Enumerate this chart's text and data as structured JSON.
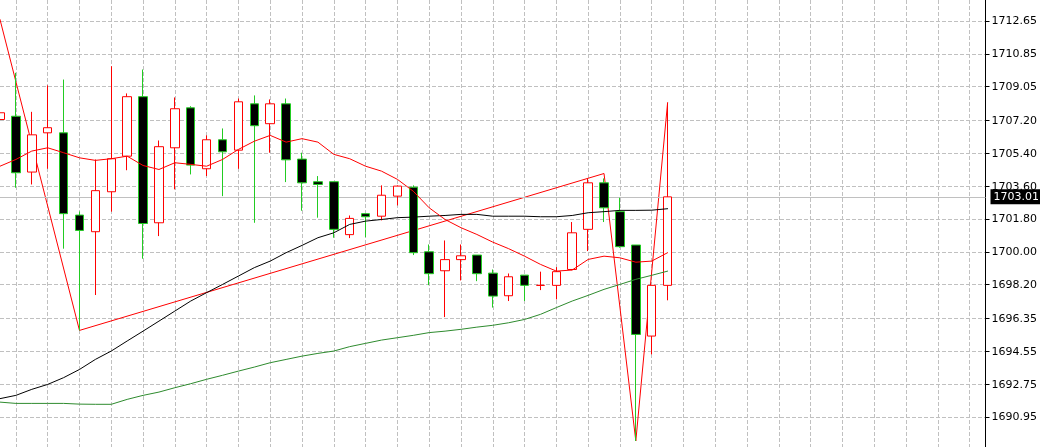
{
  "chart_data": {
    "type": "candlestick",
    "categories": [
      null,
      null,
      null,
      null,
      null,
      null,
      null,
      null,
      null,
      null,
      null,
      null,
      null,
      null,
      null,
      null,
      null,
      null,
      null,
      null,
      null,
      null,
      null,
      null,
      null,
      null,
      null,
      null,
      null,
      null,
      null,
      null,
      null,
      null,
      null,
      null,
      null,
      null,
      null,
      null,
      null,
      null,
      null,
      null,
      null,
      null,
      null,
      null,
      null,
      null,
      null,
      null,
      null,
      null,
      null,
      null,
      null,
      null,
      null,
      null,
      null,
      null,
      null
    ],
    "ylim": [
      1689.3,
      1713.8
    ],
    "yticks": [
      1712.65,
      1710.85,
      1709.05,
      {
        "value": 1707.2,
        "label": "1707.20"
      },
      {
        "value": 1705.4,
        "label": "1705.40"
      },
      {
        "value": 1703.6,
        "label": "1703.60"
      },
      {
        "value": 1701.8,
        "label": "1701.80"
      },
      {
        "value": 1700,
        "label": "1700.00"
      },
      {
        "value": 1698.2,
        "label": "1698.20"
      },
      1696.35,
      1694.55,
      1692.75,
      1690.95
    ],
    "tick_labels": "y",
    "grid": true,
    "marker": "none",
    "line_style": "solid",
    "ref_lines": [
      {
        "axis": "y",
        "value": 1703.01,
        "label": "1703.01",
        "color": "#c0c0c0"
      }
    ],
    "series": [
      {
        "type": "line",
        "color": "#2e8b2e",
        "values": [
          1691.76,
          1691.69,
          1691.69,
          1691.69,
          1691.69,
          1691.65,
          1691.64,
          1691.64,
          1691.91,
          1692.13,
          1692.31,
          1692.55,
          1692.77,
          1693.01,
          1693.23,
          1693.46,
          1693.68,
          1693.92,
          1694.1,
          1694.28,
          1694.43,
          1694.56,
          1694.8,
          1694.98,
          1695.16,
          1695.29,
          1695.42,
          1695.57,
          1695.65,
          1695.75,
          1695.87,
          1695.97,
          1696.11,
          1696.29,
          1696.57,
          1696.94,
          1697.3,
          1697.61,
          1697.94,
          1698.21,
          1698.49,
          1698.71,
          1698.94,
          null,
          null,
          null,
          null,
          null,
          null,
          null,
          null,
          null,
          null,
          null,
          null,
          null,
          null,
          null,
          null,
          null,
          null,
          null,
          null
        ]
      },
      {
        "type": "line",
        "color": "#000000",
        "values": [
          1691.95,
          1692.13,
          1692.46,
          1692.73,
          1693.1,
          1693.55,
          1694.1,
          1694.56,
          1695.11,
          1695.65,
          1696.2,
          1696.75,
          1697.3,
          1697.76,
          1698.21,
          1698.67,
          1699.13,
          1699.49,
          1699.95,
          1700.35,
          1700.77,
          1701.04,
          1701.5,
          1701.68,
          1701.77,
          1701.87,
          1701.9,
          1701.95,
          1701.99,
          1702.05,
          1702.05,
          1701.95,
          1701.95,
          1701.95,
          1701.92,
          1701.92,
          1701.99,
          1702.14,
          1702.2,
          1702.27,
          1702.27,
          1702.28,
          1702.36,
          null,
          null,
          null,
          null,
          null,
          null,
          null,
          null,
          null,
          null,
          null,
          null,
          null,
          null,
          null,
          null,
          null,
          null,
          null,
          null
        ]
      },
      {
        "type": "line",
        "color": "#ff0000",
        "values": [
          1704.69,
          1705.06,
          1705.52,
          1705.7,
          1705.43,
          1705.15,
          1705.01,
          1705.1,
          1705.24,
          1704.73,
          1704.51,
          1704.88,
          1704.79,
          1704.69,
          1705.06,
          1705.61,
          1706.06,
          1706.38,
          1706.01,
          1706.2,
          1706.01,
          1705.34,
          1705.1,
          1704.69,
          1704.42,
          1703.97,
          1703.32,
          1702.41,
          1701.77,
          1701.32,
          1700.95,
          1700.53,
          1700.17,
          1699.76,
          1699.31,
          1698.94,
          1699.0,
          1699.58,
          1699.76,
          1699.67,
          1699.43,
          1699.49,
          1699.95,
          null,
          null,
          null,
          null,
          null,
          null,
          null,
          null,
          null,
          null,
          null,
          null,
          null,
          null,
          null,
          null,
          null,
          null,
          null,
          null
        ]
      },
      {
        "type": "line",
        "color": "#ff0000",
        "values": [
          1712.73,
          null,
          null,
          null,
          null,
          1695.69,
          null,
          null,
          null,
          null,
          null,
          null,
          null,
          null,
          null,
          null,
          null,
          null,
          null,
          null,
          null,
          null,
          null,
          null,
          null,
          null,
          null,
          null,
          null,
          null,
          null,
          null,
          null,
          null,
          null,
          null,
          null,
          null,
          1704.29,
          null,
          1689.63,
          null,
          1708.17,
          null,
          null,
          null,
          null,
          null,
          null,
          null,
          null,
          null,
          null,
          null,
          null,
          null,
          null,
          null,
          null,
          null,
          null,
          null,
          null
        ]
      },
      {
        "type": "candlestick",
        "colors": [
          "#ff0000",
          "#22cc22",
          "#ff0000",
          "#ff0000",
          "#22cc22",
          "#22cc22",
          "#ff0000",
          "#ff0000",
          "#ff0000",
          "#22cc22",
          "#ff0000",
          "#ff0000",
          "#22cc22",
          "#ff0000",
          "#22cc22",
          "#ff0000",
          "#22cc22",
          "#ff0000",
          "#22cc22",
          "#22cc22",
          "#22cc22",
          "#22cc22",
          "#ff0000",
          "#22cc22",
          "#ff0000",
          "#ff0000",
          "#22cc22",
          "#22cc22",
          "#ff0000",
          "#ff0000",
          "#22cc22",
          "#22cc22",
          "#ff0000",
          "#22cc22",
          "#ff0000",
          "#ff0000",
          "#ff0000",
          "#ff0000",
          "#22cc22",
          "#22cc22",
          "#22cc22",
          "#ff0000",
          "#ff0000",
          null,
          null,
          null,
          null,
          null,
          null,
          null,
          null,
          null,
          null,
          null,
          null,
          null,
          null,
          null,
          null,
          null,
          null,
          null,
          null
        ],
        "ohlc": [
          [
            1707.25,
            1707.62,
            1707.25,
            1707.62
          ],
          [
            1707.43,
            1709.81,
            1703.51,
            1704.33
          ],
          [
            1704.37,
            1707.67,
            1703.69,
            1706.41
          ],
          [
            1706.52,
            1709.12,
            1704.55,
            1706.8
          ],
          [
            1706.52,
            1709.44,
            1700.17,
            1702.09
          ],
          [
            1702.01,
            1702.21,
            1695.69,
            1701.17
          ],
          [
            1701.1,
            1705.06,
            1697.63,
            1703.35
          ],
          [
            1703.29,
            1710.17,
            1702.2,
            1705.1
          ],
          [
            1705.24,
            1708.68,
            1704.47,
            1708.5
          ],
          [
            1708.5,
            1709.99,
            1699.62,
            1701.55
          ],
          [
            1701.59,
            1706.1,
            1700.86,
            1705.76
          ],
          [
            1705.7,
            1708.46,
            1703.42,
            1707.84
          ],
          [
            1707.89,
            1707.98,
            1704.24,
            1704.75
          ],
          [
            1704.55,
            1706.38,
            1704.15,
            1706.14
          ],
          [
            1706.14,
            1706.76,
            1703.05,
            1705.48
          ],
          [
            1705.57,
            1708.4,
            1704.55,
            1708.22
          ],
          [
            1708.11,
            1708.57,
            1701.59,
            1706.91
          ],
          [
            1707.02,
            1708.35,
            1705.43,
            1708.11
          ],
          [
            1708.11,
            1708.4,
            1703.82,
            1705.04
          ],
          [
            1705.08,
            1705.43,
            1702.25,
            1703.78
          ],
          [
            1703.84,
            1704.15,
            1701.87,
            1703.69
          ],
          [
            1703.84,
            1703.84,
            1700.77,
            1701.23
          ],
          [
            1700.94,
            1701.99,
            1700.75,
            1701.83
          ],
          [
            1702.09,
            1702.09,
            1700.8,
            1701.92
          ],
          [
            1701.95,
            1703.64,
            1701.72,
            1703.1
          ],
          [
            1703.05,
            1703.64,
            1702.54,
            1703.6
          ],
          [
            1703.54,
            1703.64,
            1699.82,
            1699.95
          ],
          [
            1700.0,
            1700.4,
            1698.17,
            1698.8
          ],
          [
            1698.96,
            1700.62,
            1696.42,
            1699.57
          ],
          [
            1699.57,
            1700.4,
            1698.43,
            1699.78
          ],
          [
            1699.82,
            1699.82,
            1698.39,
            1698.8
          ],
          [
            1698.83,
            1699.03,
            1696.94,
            1697.57
          ],
          [
            1697.59,
            1698.81,
            1697.3,
            1698.63
          ],
          [
            1698.72,
            1698.72,
            1697.3,
            1698.16
          ],
          [
            1698.16,
            1698.91,
            1697.9,
            1698.16
          ],
          [
            1698.16,
            1699.16,
            1697.39,
            1698.91
          ],
          [
            1699.03,
            1701.63,
            1698.99,
            1701.04
          ],
          [
            1701.23,
            1704.02,
            1700.04,
            1703.78
          ],
          [
            1703.78,
            1704.02,
            1701.63,
            1702.41
          ],
          [
            1702.2,
            1702.96,
            1700.22,
            1700.28
          ],
          [
            1700.37,
            1700.37,
            1689.63,
            1695.47
          ],
          [
            1695.38,
            1698.16,
            1694.38,
            1698.16
          ],
          [
            1698.16,
            1708.17,
            1697.34,
            1703.01
          ],
          null,
          null,
          null,
          null,
          null,
          null,
          null,
          null,
          null,
          null,
          null,
          null,
          null,
          null,
          null,
          null,
          null,
          null,
          null,
          null
        ]
      }
    ]
  }
}
